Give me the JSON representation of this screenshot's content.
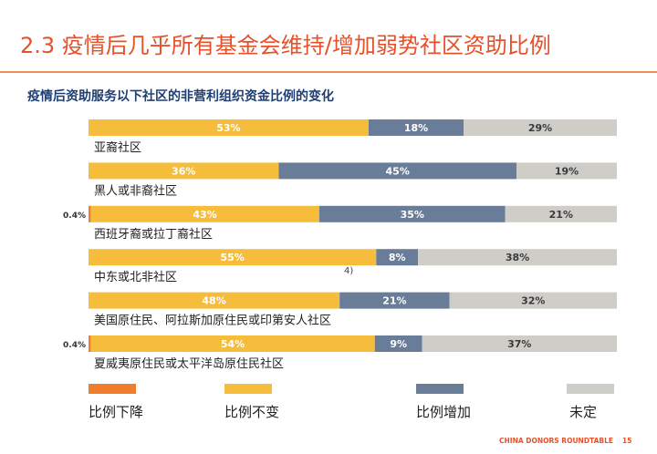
{
  "header": {
    "title": "2.3 疫情后几乎所有基金会维持/增加弱势社区资助比例"
  },
  "chart_data": {
    "type": "bar",
    "stacked": true,
    "orientation": "horizontal",
    "title": "疫情后资助服务以下社区的非营利组织资金比例的变化",
    "categories": [
      "亚裔社区",
      "黑人或非裔社区",
      "西班牙裔或拉丁裔社区",
      "中东或北非社区",
      "美国原住民、阿拉斯加原住民或印第安人社区",
      "夏威夷原住民或太平洋岛原住民社区"
    ],
    "series": [
      {
        "name": "比例下降",
        "color": "#f07d2b",
        "values": [
          0,
          0,
          0.4,
          0,
          0,
          0.4
        ]
      },
      {
        "name": "比例不变",
        "color": "#f6bd3c",
        "values": [
          53,
          36,
          43,
          55,
          48,
          54
        ]
      },
      {
        "name": "比例增加",
        "color": "#6a7d98",
        "values": [
          18,
          45,
          35,
          8,
          21,
          9
        ]
      },
      {
        "name": "未定",
        "color": "#cfcdc8",
        "values": [
          29,
          19,
          21,
          38,
          32,
          37
        ]
      }
    ],
    "value_labels": {
      "decrease": [
        "",
        "",
        "0.4%",
        "",
        "",
        "0.4%"
      ],
      "unchanged": [
        "53%",
        "36%",
        "43%",
        "55%",
        "48%",
        "54%"
      ],
      "increase": [
        "18%",
        "45%",
        "35%",
        "8%",
        "21%",
        "9%"
      ],
      "undecided": [
        "29%",
        "19%",
        "21%",
        "38%",
        "32%",
        "37%"
      ]
    },
    "xlim": [
      0,
      100
    ],
    "legend_position": "bottom"
  },
  "annotations": {
    "stray_note": "4)"
  },
  "footer": {
    "org": "CHINA DONORS ROUNDTABLE",
    "page": "15"
  }
}
